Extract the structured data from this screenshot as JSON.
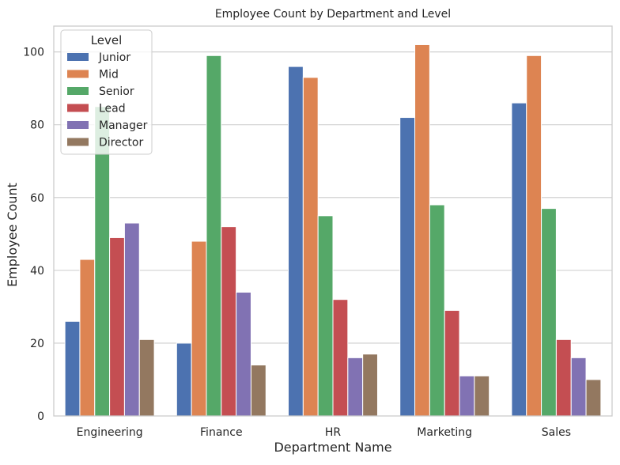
{
  "chart_data": {
    "type": "bar",
    "title": "Employee Count by Department and Level",
    "xlabel": "Department Name",
    "ylabel": "Employee Count",
    "categories": [
      "Engineering",
      "Finance",
      "HR",
      "Marketing",
      "Sales"
    ],
    "series": [
      {
        "name": "Junior",
        "color": "#4c72b0",
        "values": [
          26,
          20,
          96,
          82,
          86
        ]
      },
      {
        "name": "Mid",
        "color": "#dd8452",
        "values": [
          43,
          48,
          93,
          102,
          99
        ]
      },
      {
        "name": "Senior",
        "color": "#55a868",
        "values": [
          85,
          99,
          55,
          58,
          57
        ]
      },
      {
        "name": "Lead",
        "color": "#c44e52",
        "values": [
          49,
          52,
          32,
          29,
          21
        ]
      },
      {
        "name": "Manager",
        "color": "#8172b3",
        "values": [
          53,
          34,
          16,
          11,
          16
        ]
      },
      {
        "name": "Director",
        "color": "#937860",
        "values": [
          21,
          14,
          17,
          11,
          10
        ]
      }
    ],
    "ylim": [
      0,
      107.1
    ],
    "yticks": [
      0,
      20,
      40,
      60,
      80,
      100
    ],
    "grid": "y",
    "legend": {
      "title": "Level",
      "placement": "top-left"
    }
  },
  "colors": {
    "grid": "#cccccc",
    "spine": "#cccccc",
    "text": "#262626",
    "bar_edge": "#ffffff"
  }
}
